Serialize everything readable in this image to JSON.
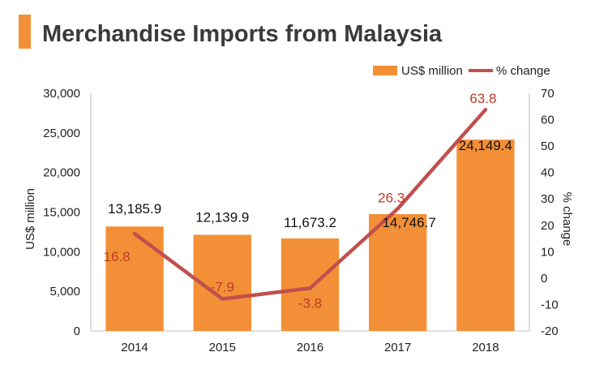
{
  "chart_data": {
    "type": "bar",
    "title": "Merchandise Imports from Malaysia",
    "categories": [
      "2014",
      "2015",
      "2016",
      "2017",
      "2018"
    ],
    "series": [
      {
        "name": "US$ million",
        "type": "bar",
        "axis": "left",
        "values": [
          13185.9,
          12139.9,
          11673.2,
          14746.7,
          24149.4
        ],
        "value_labels": [
          "13,185.9",
          "12,139.9",
          "11,673.2",
          "14,746.7",
          "24,149.4"
        ]
      },
      {
        "name": "% change",
        "type": "line",
        "axis": "right",
        "values": [
          16.8,
          -7.9,
          -3.8,
          26.3,
          63.8
        ],
        "value_labels": [
          "16.8",
          "-7.9",
          "-3.8",
          "26.3",
          "63.8"
        ]
      }
    ],
    "ylabel": "US$ million",
    "y2label": "% change",
    "ylim": [
      0,
      30000
    ],
    "y2lim": [
      -20,
      70
    ],
    "y_ticks": [
      "0",
      "5,000",
      "10,000",
      "15,000",
      "20,000",
      "25,000",
      "30,000"
    ],
    "y2_ticks": [
      "-20",
      "-10",
      "0",
      "10",
      "20",
      "30",
      "40",
      "50",
      "60",
      "70"
    ],
    "legend_position": "top-right",
    "grid": false,
    "colors": {
      "bar": "#f39037",
      "line": "#c0504d",
      "accent": "#f39037",
      "title": "#3a3a3a",
      "pct_label": "#c0392b"
    }
  }
}
